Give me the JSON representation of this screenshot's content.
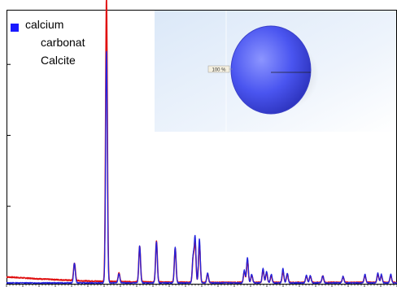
{
  "chart_data": {
    "type": "line",
    "title": "",
    "xlabel": "",
    "ylabel": "",
    "xlim": [
      0,
      100
    ],
    "ylim": [
      0,
      100
    ],
    "grid": false,
    "legend": {
      "placement": "top-left",
      "lines": [
        "calcium",
        "carbonat",
        "Calcite"
      ],
      "swatch_color": "#1a1aff"
    },
    "series": [
      {
        "color": "#e01010",
        "background": [
          [
            0,
            2.4
          ],
          [
            10,
            1.6
          ],
          [
            20,
            1.0
          ],
          [
            30,
            0.7
          ],
          [
            50,
            0.45
          ],
          [
            75,
            0.45
          ],
          [
            100,
            0.45
          ]
        ],
        "peaks": [
          {
            "x": 17.4,
            "y": 6.2
          },
          {
            "x": 25.6,
            "y": 100
          },
          {
            "x": 28.8,
            "y": 3.0
          },
          {
            "x": 34.1,
            "y": 12.5
          },
          {
            "x": 38.4,
            "y": 14.5
          },
          {
            "x": 43.2,
            "y": 12.0
          },
          {
            "x": 47.8,
            "y": 8.5
          },
          {
            "x": 48.3,
            "y": 14.0
          },
          {
            "x": 49.4,
            "y": 13.5
          },
          {
            "x": 51.5,
            "y": 3.0
          },
          {
            "x": 60.9,
            "y": 4.0
          },
          {
            "x": 61.7,
            "y": 8.0
          },
          {
            "x": 62.8,
            "y": 2.5
          },
          {
            "x": 65.7,
            "y": 4.5
          },
          {
            "x": 66.6,
            "y": 3.5
          },
          {
            "x": 67.8,
            "y": 2.5
          },
          {
            "x": 70.8,
            "y": 4.0
          },
          {
            "x": 71.9,
            "y": 3.0
          },
          {
            "x": 76.8,
            "y": 2.3
          },
          {
            "x": 77.8,
            "y": 2.3
          },
          {
            "x": 81.0,
            "y": 2.3
          },
          {
            "x": 86.2,
            "y": 2.0
          },
          {
            "x": 91.8,
            "y": 2.5
          },
          {
            "x": 95.1,
            "y": 3.0
          },
          {
            "x": 96.0,
            "y": 2.5
          },
          {
            "x": 98.4,
            "y": 2.5
          }
        ]
      },
      {
        "color": "#2222dd",
        "background": [
          [
            0,
            0.3
          ],
          [
            100,
            0.3
          ]
        ],
        "peaks": [
          {
            "x": 17.4,
            "y": 7.0
          },
          {
            "x": 25.6,
            "y": 82.0
          },
          {
            "x": 28.8,
            "y": 3.3
          },
          {
            "x": 34.1,
            "y": 13.0
          },
          {
            "x": 38.4,
            "y": 14.5
          },
          {
            "x": 43.2,
            "y": 12.5
          },
          {
            "x": 47.8,
            "y": 9.0
          },
          {
            "x": 48.3,
            "y": 16.0
          },
          {
            "x": 49.4,
            "y": 15.5
          },
          {
            "x": 51.5,
            "y": 3.5
          },
          {
            "x": 60.9,
            "y": 4.5
          },
          {
            "x": 61.7,
            "y": 9.0
          },
          {
            "x": 62.8,
            "y": 3.0
          },
          {
            "x": 65.7,
            "y": 5.0
          },
          {
            "x": 66.6,
            "y": 4.0
          },
          {
            "x": 67.8,
            "y": 3.0
          },
          {
            "x": 70.8,
            "y": 5.0
          },
          {
            "x": 71.9,
            "y": 3.5
          },
          {
            "x": 76.8,
            "y": 2.6
          },
          {
            "x": 77.8,
            "y": 2.6
          },
          {
            "x": 81.0,
            "y": 2.6
          },
          {
            "x": 86.2,
            "y": 2.3
          },
          {
            "x": 91.8,
            "y": 3.0
          },
          {
            "x": 95.1,
            "y": 3.5
          },
          {
            "x": 96.0,
            "y": 3.0
          },
          {
            "x": 98.4,
            "y": 3.0
          }
        ]
      }
    ],
    "inset": {
      "type": "pie",
      "slices": [
        {
          "label": "100 %",
          "value": 100,
          "color": "#4a55f0"
        }
      ]
    }
  }
}
